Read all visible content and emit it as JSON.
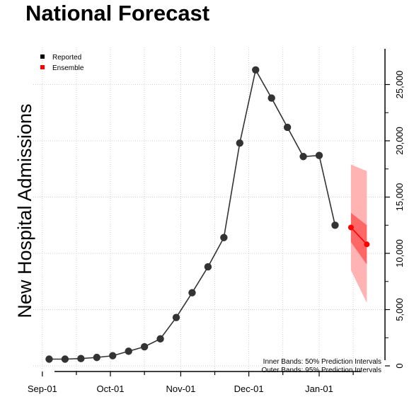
{
  "chart_data": {
    "type": "line",
    "title": "National Forecast",
    "xlabel": "",
    "ylabel": "New Hospital Admissions",
    "ylim": [
      -500,
      28300
    ],
    "yticks": [
      0,
      5000,
      10000,
      15000,
      20000,
      25000
    ],
    "ytick_labels": [
      "0",
      "5,000",
      "10,000",
      "15,000",
      "20,000",
      "25,000"
    ],
    "xticks": [
      "2021-09-01",
      "2021-10-01",
      "2021-11-01",
      "2021-12-01",
      "2022-01-01"
    ],
    "xtick_labels": [
      "Sep-01",
      "Oct-01",
      "Nov-01",
      "Dec-01",
      "Jan-01"
    ],
    "grid": true,
    "legend": [
      {
        "name": "Reported",
        "color": "#000000"
      },
      {
        "name": "Ensemble",
        "color": "#ff0000"
      }
    ],
    "legend_position": "top-left",
    "series": [
      {
        "name": "Reported",
        "color": "#333333",
        "x": [
          "2021-09-04",
          "2021-09-11",
          "2021-09-18",
          "2021-09-25",
          "2021-10-02",
          "2021-10-09",
          "2021-10-16",
          "2021-10-23",
          "2021-10-30",
          "2021-11-06",
          "2021-11-13",
          "2021-11-20",
          "2021-11-27",
          "2021-12-04",
          "2021-12-11",
          "2021-12-18",
          "2021-12-25",
          "2022-01-01",
          "2022-01-08"
        ],
        "values": [
          600,
          600,
          650,
          750,
          900,
          1300,
          1700,
          2400,
          4300,
          6500,
          8800,
          11400,
          19800,
          26300,
          23800,
          21200,
          18600,
          18700,
          12500
        ]
      },
      {
        "name": "Ensemble",
        "color": "#ff0000",
        "x": [
          "2022-01-15",
          "2022-01-22"
        ],
        "values": [
          12300,
          10800
        ],
        "interval_50": {
          "lower": [
            11000,
            9000
          ],
          "upper": [
            13600,
            12500
          ]
        },
        "interval_95": {
          "lower": [
            8500,
            5600
          ],
          "upper": [
            17900,
            17300
          ]
        }
      }
    ],
    "annotations": [
      "Inner Bands: 50% Prediction Intervals",
      "Outer Bands: 95% Prediction Intervals"
    ]
  }
}
